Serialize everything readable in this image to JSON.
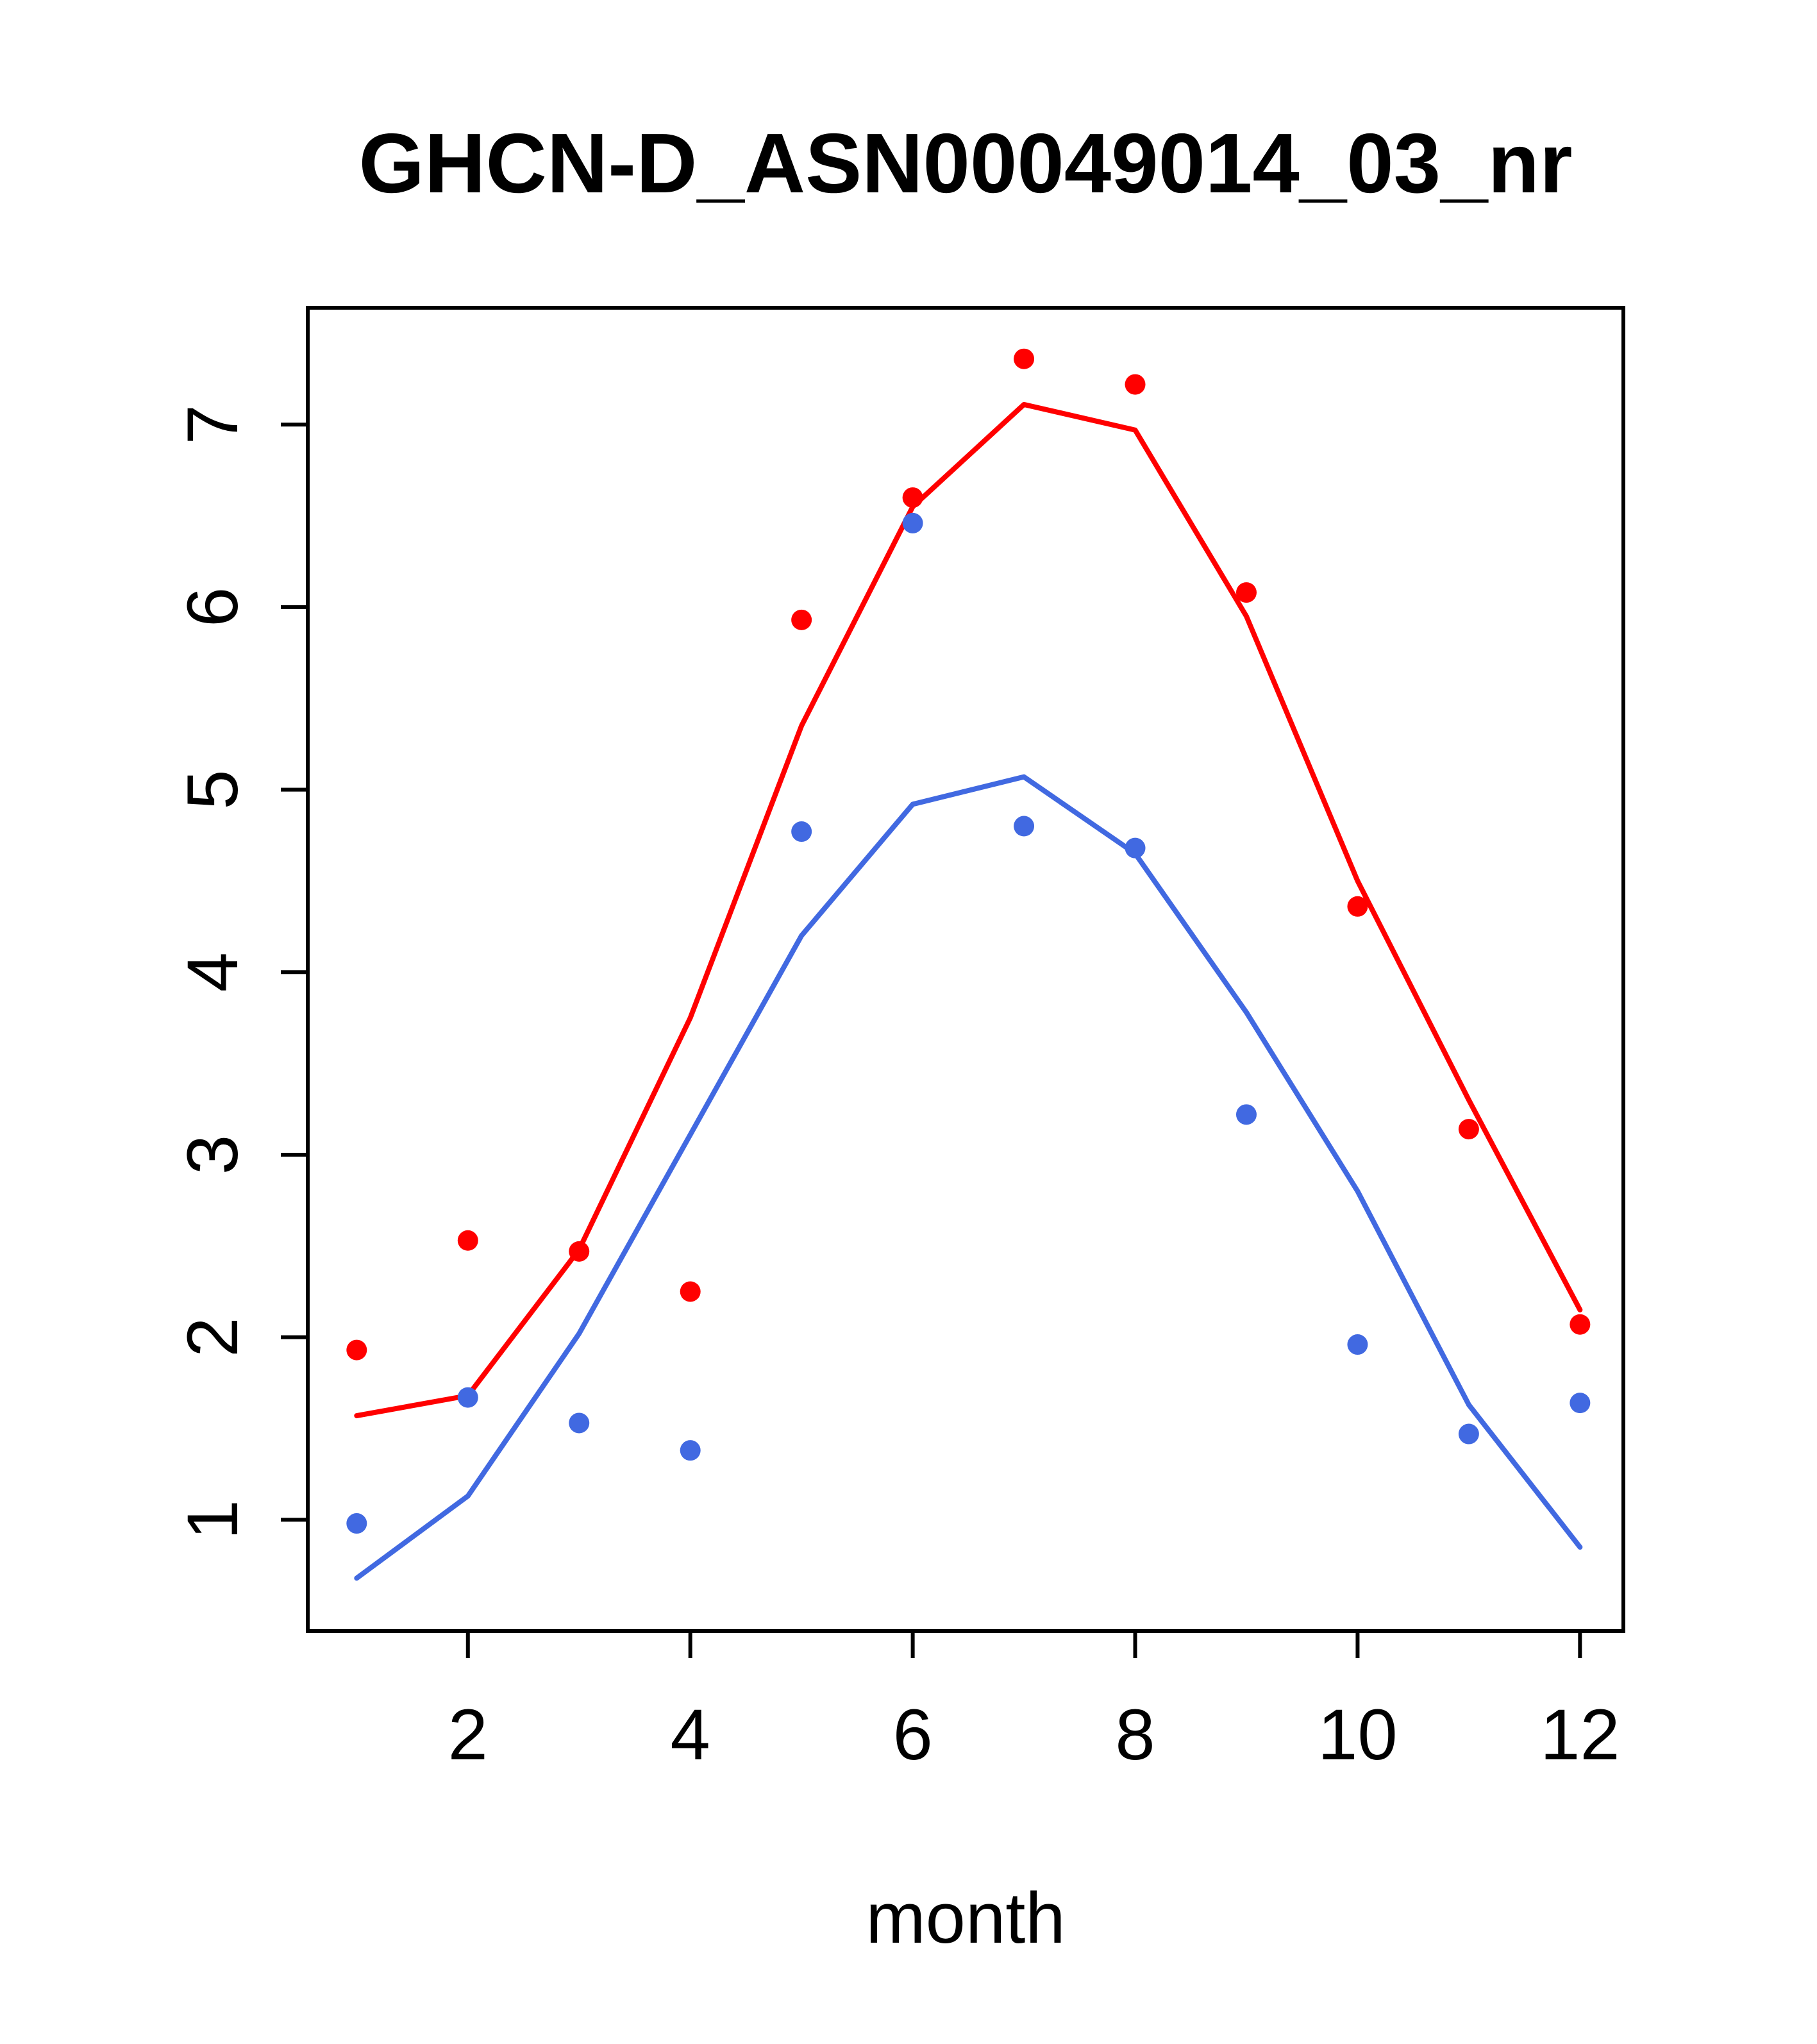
{
  "page": {
    "background": "#ffffff"
  },
  "chart_data": {
    "type": "scatter",
    "title": "GHCN-D_ASN00049014_03_nr",
    "xlabel": "month",
    "ylabel": "",
    "x": [
      1,
      2,
      3,
      4,
      5,
      6,
      7,
      8,
      9,
      10,
      11,
      12
    ],
    "x_ticks": [
      2,
      4,
      6,
      8,
      10,
      12
    ],
    "y_ticks": [
      1,
      2,
      3,
      4,
      5,
      6,
      7
    ],
    "xlim": [
      0.56,
      12.39
    ],
    "ylim": [
      0.39,
      7.64
    ],
    "grid": false,
    "legend": "none",
    "colors": {
      "red": "#ff0000",
      "blue": "#4169e1",
      "axis": "#000000"
    },
    "series": [
      {
        "name": "red-line-smoothed",
        "type": "line",
        "color_key": "red",
        "values": [
          1.57,
          1.68,
          2.48,
          3.75,
          5.35,
          6.55,
          7.11,
          6.97,
          5.95,
          4.5,
          3.3,
          2.15
        ]
      },
      {
        "name": "blue-line-smoothed",
        "type": "line",
        "color_key": "blue",
        "values": [
          0.68,
          1.13,
          2.02,
          3.11,
          4.2,
          4.92,
          5.07,
          4.65,
          3.78,
          2.8,
          1.63,
          0.85
        ]
      },
      {
        "name": "red-points-monthly",
        "type": "points",
        "color_key": "red",
        "values": [
          1.93,
          2.53,
          2.47,
          2.25,
          5.93,
          6.6,
          7.36,
          7.22,
          6.08,
          4.36,
          3.14,
          2.07
        ]
      },
      {
        "name": "blue-points-monthly",
        "type": "points",
        "color_key": "blue",
        "values": [
          0.98,
          1.67,
          1.53,
          1.38,
          4.77,
          6.46,
          4.8,
          4.68,
          3.22,
          1.96,
          1.47,
          1.64
        ]
      }
    ]
  }
}
